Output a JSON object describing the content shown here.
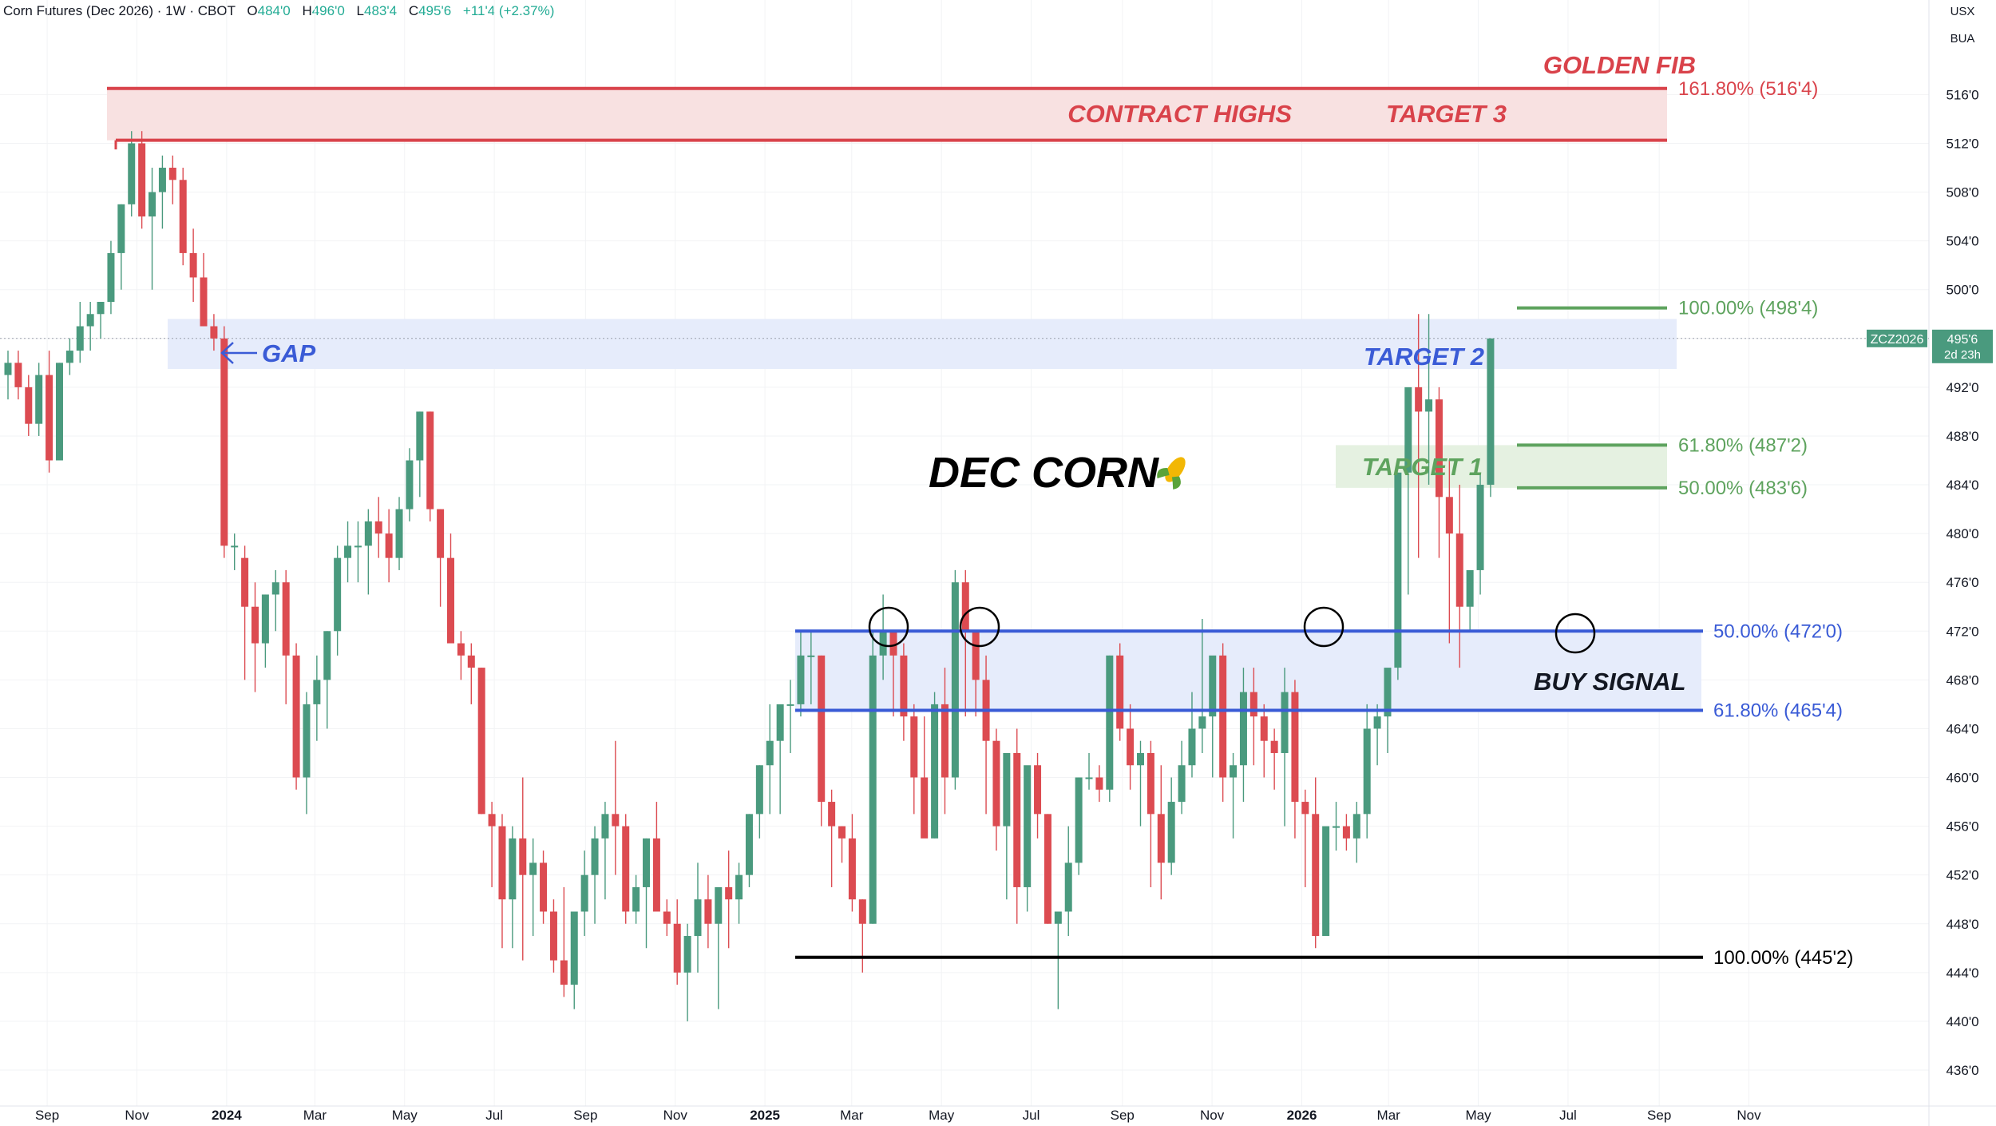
{
  "header": {
    "title": "Corn Futures (Dec 2026) · 1W · CBOT",
    "open_label": "O",
    "open": "484'0",
    "high_label": "H",
    "high": "496'0",
    "low_label": "L",
    "low": "483'4",
    "close_label": "C",
    "close": "495'6",
    "change": "+11'4 (+2.37%)"
  },
  "price_scale": {
    "currency": "USX",
    "unit": "BUA"
  },
  "last_price_tag": {
    "symbol": "ZCZ2026",
    "price": "495'6",
    "countdown": "2d 23h"
  },
  "colors": {
    "up": "#4a9a7e",
    "down": "#dc4b51",
    "red_lines": "#d9434b",
    "red_zone": "#f8e1e1",
    "blue_lines": "#3a5bd6",
    "blue_zone": "#e6ecfb",
    "green_lines": "#5ea35e",
    "green_zone": "#e5f1e1",
    "black_line": "#000000"
  },
  "chart_data": {
    "type": "candlestick",
    "title": "DEC CORN",
    "title_icon": "corn-icon",
    "interval": "1W",
    "y_axis": {
      "ticks": [
        "436'0",
        "440'0",
        "444'0",
        "448'0",
        "452'0",
        "456'0",
        "460'0",
        "464'0",
        "468'0",
        "472'0",
        "476'0",
        "480'0",
        "484'0",
        "488'0",
        "492'0",
        "496'0",
        "500'0",
        "504'0",
        "508'0",
        "512'0",
        "516'0"
      ],
      "tick_values": [
        436,
        440,
        444,
        448,
        452,
        456,
        460,
        464,
        468,
        472,
        476,
        480,
        484,
        488,
        492,
        496,
        500,
        504,
        508,
        512,
        516
      ],
      "ylim": [
        434.5,
        518.5
      ]
    },
    "x_axis": {
      "start_date": "2023-08-01",
      "end_date": "2026-12-08",
      "ticks": [
        {
          "label": "Sep",
          "date": "2023-09-01",
          "bold": false
        },
        {
          "label": "Nov",
          "date": "2023-11-01",
          "bold": false
        },
        {
          "label": "2024",
          "date": "2024-01-01",
          "bold": true
        },
        {
          "label": "Mar",
          "date": "2024-03-01",
          "bold": false
        },
        {
          "label": "May",
          "date": "2024-05-01",
          "bold": false
        },
        {
          "label": "Jul",
          "date": "2024-07-01",
          "bold": false
        },
        {
          "label": "Sep",
          "date": "2024-09-01",
          "bold": false
        },
        {
          "label": "Nov",
          "date": "2024-11-01",
          "bold": false
        },
        {
          "label": "2025",
          "date": "2025-01-01",
          "bold": true
        },
        {
          "label": "Mar",
          "date": "2025-03-01",
          "bold": false
        },
        {
          "label": "May",
          "date": "2025-05-01",
          "bold": false
        },
        {
          "label": "Jul",
          "date": "2025-07-01",
          "bold": false
        },
        {
          "label": "Sep",
          "date": "2025-09-01",
          "bold": false
        },
        {
          "label": "Nov",
          "date": "2025-11-01",
          "bold": false
        },
        {
          "label": "2026",
          "date": "2026-01-01",
          "bold": true
        },
        {
          "label": "Mar",
          "date": "2026-03-01",
          "bold": false
        },
        {
          "label": "May",
          "date": "2026-05-01",
          "bold": false
        },
        {
          "label": "Jul",
          "date": "2026-07-01",
          "bold": false
        },
        {
          "label": "Sep",
          "date": "2026-09-01",
          "bold": false
        },
        {
          "label": "Nov",
          "date": "2026-11-01",
          "bold": false
        }
      ]
    },
    "candles_start_date": "2023-08-01",
    "candles_weekly_ohlc": [
      [
        493,
        495,
        491,
        494
      ],
      [
        494,
        495,
        491,
        492
      ],
      [
        492,
        493,
        488,
        489
      ],
      [
        489,
        494,
        488,
        493
      ],
      [
        493,
        495,
        485,
        486
      ],
      [
        486,
        494,
        486,
        494
      ],
      [
        494,
        496,
        493,
        495
      ],
      [
        495,
        499,
        494,
        497
      ],
      [
        497,
        499,
        495,
        498
      ],
      [
        498,
        499,
        496,
        499
      ],
      [
        499,
        504,
        498,
        503
      ],
      [
        503,
        507,
        500,
        507
      ],
      [
        507,
        513,
        506,
        512
      ],
      [
        512,
        513,
        505,
        506
      ],
      [
        506,
        510,
        500,
        508
      ],
      [
        508,
        511,
        505,
        510
      ],
      [
        510,
        511,
        507,
        509
      ],
      [
        509,
        510,
        502,
        503
      ],
      [
        503,
        505,
        499,
        501
      ],
      [
        501,
        503,
        497,
        497
      ],
      [
        497,
        498,
        495,
        496
      ],
      [
        496,
        497,
        478,
        479
      ],
      [
        479,
        480,
        477,
        479
      ],
      [
        478,
        479,
        468,
        474
      ],
      [
        474,
        476,
        467,
        471
      ],
      [
        471,
        475,
        469,
        475
      ],
      [
        475,
        477,
        472,
        476
      ],
      [
        476,
        477,
        466,
        470
      ],
      [
        470,
        471,
        459,
        460
      ],
      [
        460,
        467,
        457,
        466
      ],
      [
        466,
        470,
        463,
        468
      ],
      [
        468,
        472,
        464,
        472
      ],
      [
        472,
        479,
        470,
        478
      ],
      [
        478,
        481,
        476,
        479
      ],
      [
        479,
        481,
        476,
        479
      ],
      [
        479,
        482,
        475,
        481
      ],
      [
        481,
        483,
        478,
        480
      ],
      [
        480,
        482,
        476,
        478
      ],
      [
        478,
        483,
        477,
        482
      ],
      [
        482,
        487,
        481,
        486
      ],
      [
        486,
        490,
        483,
        490
      ],
      [
        490,
        490,
        481,
        482
      ],
      [
        482,
        482,
        474,
        478
      ],
      [
        478,
        480,
        471,
        471
      ],
      [
        471,
        472,
        468,
        470
      ],
      [
        470,
        471,
        466,
        469
      ],
      [
        469,
        469,
        457,
        457
      ],
      [
        457,
        458,
        451,
        456
      ],
      [
        456,
        457,
        446,
        450
      ],
      [
        450,
        456,
        446,
        455
      ],
      [
        455,
        460,
        445,
        452
      ],
      [
        452,
        455,
        447,
        453
      ],
      [
        453,
        454,
        448,
        449
      ],
      [
        449,
        450,
        444,
        445
      ],
      [
        445,
        451,
        442,
        443
      ],
      [
        443,
        449,
        441,
        449
      ],
      [
        449,
        454,
        447,
        452
      ],
      [
        452,
        456,
        448,
        455
      ],
      [
        455,
        458,
        450,
        457
      ],
      [
        457,
        463,
        452,
        456
      ],
      [
        456,
        457,
        448,
        449
      ],
      [
        449,
        452,
        448,
        451
      ],
      [
        451,
        455,
        446,
        455
      ],
      [
        455,
        458,
        450,
        449
      ],
      [
        449,
        450,
        447,
        448
      ],
      [
        448,
        450,
        443,
        444
      ],
      [
        444,
        448,
        440,
        447
      ],
      [
        447,
        453,
        444,
        450
      ],
      [
        450,
        452,
        446,
        448
      ],
      [
        448,
        451,
        441,
        451
      ],
      [
        451,
        454,
        446,
        450
      ],
      [
        450,
        453,
        448,
        452
      ],
      [
        452,
        457,
        451,
        457
      ],
      [
        457,
        461,
        455,
        461
      ],
      [
        461,
        466,
        457,
        463
      ],
      [
        463,
        465,
        457,
        466
      ],
      [
        466,
        468,
        462,
        466
      ],
      [
        466,
        472,
        465,
        470
      ],
      [
        470,
        472,
        466,
        470
      ],
      [
        470,
        470,
        456,
        458
      ],
      [
        458,
        459,
        451,
        456
      ],
      [
        456,
        456,
        453,
        455
      ],
      [
        455,
        457,
        449,
        450
      ],
      [
        450,
        450,
        444,
        448
      ],
      [
        448,
        472,
        448,
        470
      ],
      [
        470,
        475,
        468,
        472
      ],
      [
        472,
        472,
        465,
        470
      ],
      [
        470,
        471,
        463,
        465
      ],
      [
        465,
        466,
        457,
        460
      ],
      [
        460,
        465,
        456,
        455
      ],
      [
        455,
        467,
        455,
        466
      ],
      [
        466,
        469,
        457,
        460
      ],
      [
        460,
        477,
        459,
        476
      ],
      [
        476,
        477,
        465,
        472
      ],
      [
        472,
        472,
        465,
        468
      ],
      [
        468,
        470,
        457,
        463
      ],
      [
        463,
        464,
        454,
        456
      ],
      [
        456,
        461,
        450,
        462
      ],
      [
        462,
        464,
        448,
        451
      ],
      [
        451,
        459,
        449,
        461
      ],
      [
        461,
        462,
        455,
        457
      ],
      [
        457,
        457,
        448,
        448
      ],
      [
        448,
        449,
        441,
        449
      ],
      [
        449,
        456,
        447,
        453
      ],
      [
        453,
        460,
        452,
        460
      ],
      [
        460,
        462,
        459,
        460
      ],
      [
        460,
        461,
        458,
        459
      ],
      [
        459,
        470,
        458,
        470
      ],
      [
        470,
        471,
        463,
        464
      ],
      [
        464,
        466,
        459,
        461
      ],
      [
        461,
        463,
        456,
        462
      ],
      [
        462,
        463,
        451,
        457
      ],
      [
        457,
        461,
        450,
        453
      ],
      [
        453,
        460,
        452,
        458
      ],
      [
        458,
        463,
        457,
        461
      ],
      [
        461,
        467,
        460,
        464
      ],
      [
        464,
        473,
        462,
        465
      ],
      [
        465,
        468,
        460,
        470
      ],
      [
        470,
        471,
        458,
        460
      ],
      [
        460,
        462,
        455,
        461
      ],
      [
        461,
        469,
        458,
        467
      ],
      [
        467,
        469,
        461,
        465
      ],
      [
        465,
        466,
        460,
        463
      ],
      [
        463,
        464,
        459,
        462
      ],
      [
        462,
        469,
        456,
        467
      ],
      [
        467,
        468,
        455,
        458
      ],
      [
        458,
        459,
        451,
        457
      ],
      [
        457,
        460,
        446,
        447
      ],
      [
        447,
        449,
        448,
        456
      ],
      [
        456,
        458,
        454,
        456
      ],
      [
        456,
        457,
        454,
        455
      ],
      [
        455,
        458,
        453,
        457
      ],
      [
        457,
        466,
        455,
        464
      ],
      [
        464,
        466,
        461,
        465
      ],
      [
        465,
        467,
        462,
        469
      ],
      [
        469,
        485,
        468,
        485
      ],
      [
        485,
        490,
        475,
        492
      ],
      [
        492,
        498,
        478,
        490
      ],
      [
        490,
        498,
        484,
        491
      ],
      [
        491,
        492,
        478,
        483
      ],
      [
        483,
        486,
        471,
        480
      ],
      [
        480,
        484,
        469,
        474
      ],
      [
        474,
        476,
        472,
        477
      ],
      [
        477,
        485,
        475,
        484
      ],
      [
        484,
        496,
        483,
        496
      ]
    ],
    "levels": [
      {
        "name": "golden-fib-161",
        "value": 516.5,
        "label": "161.80% (516'4)",
        "color": "red"
      },
      {
        "name": "contract-highs",
        "value": 512.25,
        "color": "red"
      },
      {
        "name": "fib-100-green",
        "value": 498.5,
        "label": "100.00% (498'4)",
        "color": "green"
      },
      {
        "name": "fib-618-green",
        "value": 487.25,
        "label": "61.80% (487'2)",
        "color": "green"
      },
      {
        "name": "fib-50-green",
        "value": 483.75,
        "label": "50.00% (483'6)",
        "color": "green"
      },
      {
        "name": "fib-50-blue",
        "value": 472.0,
        "label": "50.00% (472'0)",
        "color": "blue"
      },
      {
        "name": "fib-618-blue",
        "value": 465.5,
        "label": "61.80% (465'4)",
        "color": "blue"
      },
      {
        "name": "fib-100-black",
        "value": 445.25,
        "label": "100.00% (445'2)",
        "color": "black"
      }
    ],
    "annotations": {
      "golden_fib": "GOLDEN FIB",
      "contract_highs": "CONTRACT HIGHS",
      "target_3": "TARGET 3",
      "target_2": "TARGET 2",
      "target_1": "TARGET 1",
      "gap": "GAP",
      "buy_signal": "BUY SIGNAL"
    }
  }
}
